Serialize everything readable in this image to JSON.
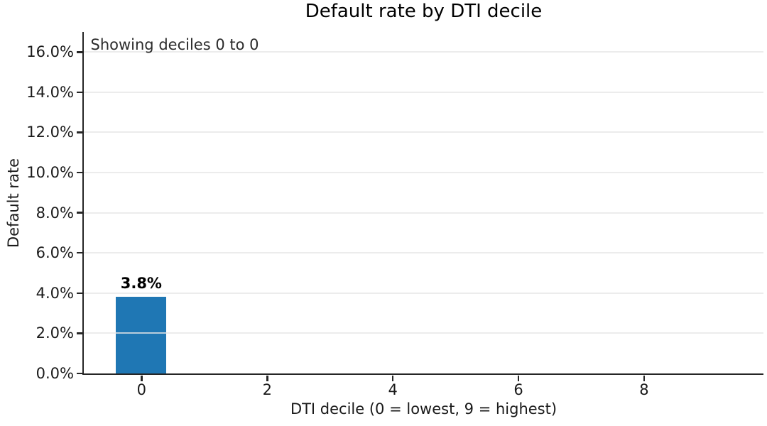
{
  "chart_data": {
    "type": "bar",
    "title": "Default rate by DTI decile",
    "annotation": "Showing deciles 0 to 0",
    "xlabel": "DTI decile (0 = lowest, 9 = highest)",
    "ylabel": "Default rate",
    "x": [
      0
    ],
    "values": [
      3.8
    ],
    "bar_labels": [
      "3.8%"
    ],
    "bar_width": 0.8,
    "bar_color": "#1f77b4",
    "xticks": [
      0,
      2,
      4,
      6,
      8
    ],
    "yticks": [
      0,
      2,
      4,
      6,
      8,
      10,
      12,
      14,
      16
    ],
    "ytick_labels": [
      "0.0%",
      "2.0%",
      "4.0%",
      "6.0%",
      "8.0%",
      "10.0%",
      "12.0%",
      "14.0%",
      "16.0%"
    ],
    "xlim": [
      -0.92,
      9.9
    ],
    "ylim": [
      0,
      17
    ],
    "grid": "horizontal",
    "grid_color": "#e7e7e7",
    "text_color": "#1a1a1a",
    "legend": null
  }
}
